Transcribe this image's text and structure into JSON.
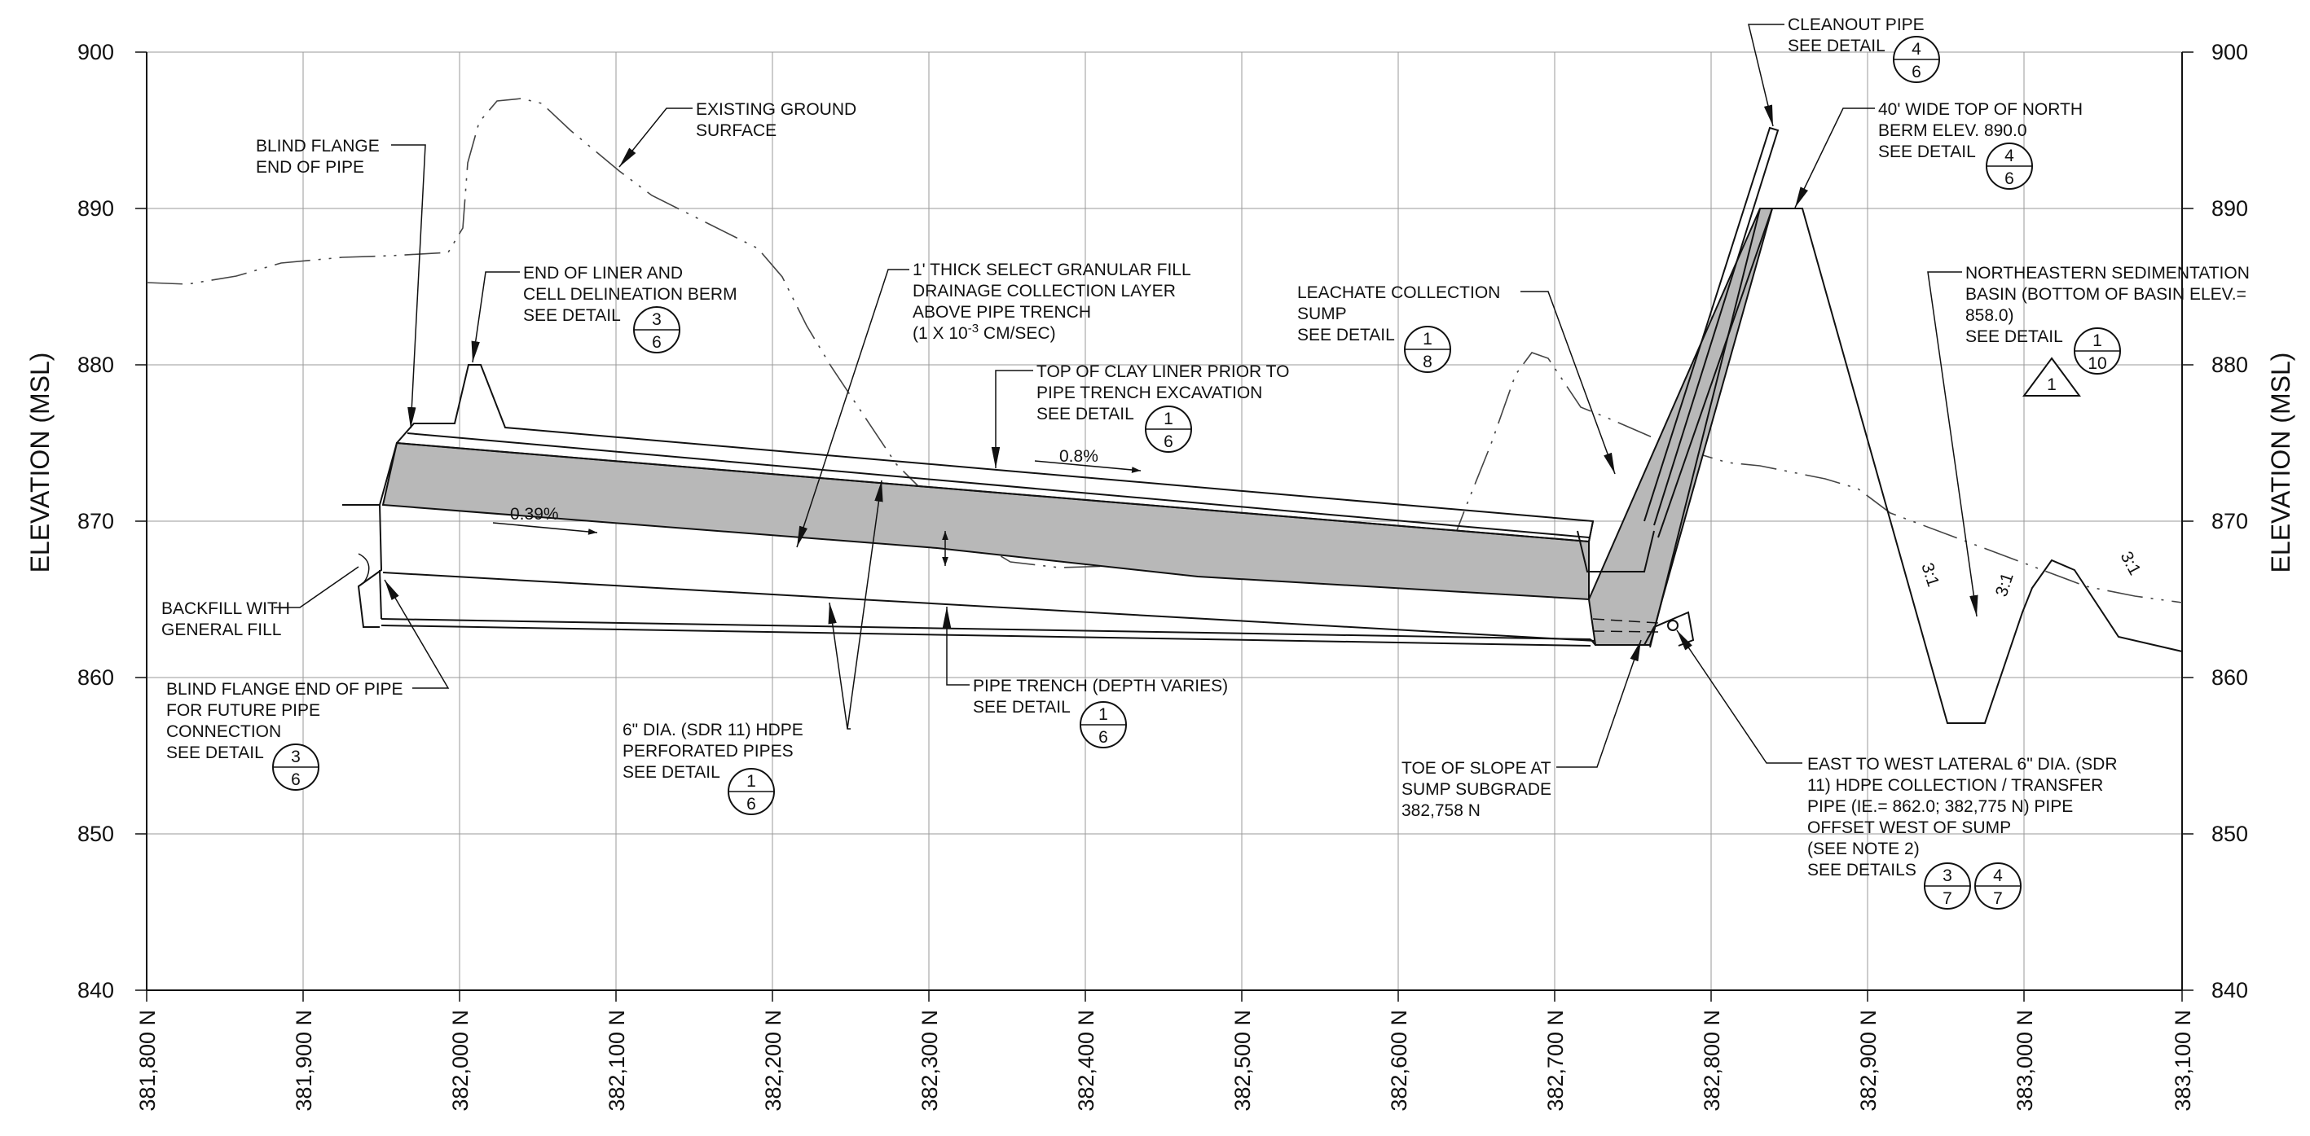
{
  "axes": {
    "y_title_left": "ELEVATION (MSL)",
    "y_title_right": "ELEVATION (MSL)",
    "y_ticks": [
      "840",
      "850",
      "860",
      "870",
      "880",
      "890",
      "900"
    ],
    "x_ticks": [
      "381,800 N",
      "381,900 N",
      "382,000 N",
      "382,100 N",
      "382,200 N",
      "382,300 N",
      "382,400 N",
      "382,500 N",
      "382,600 N",
      "382,700 N",
      "382,800 N",
      "382,900 N",
      "383,000 N",
      "383,100 N"
    ]
  },
  "slopes": {
    "pipe_slope": "0.39%",
    "liner_slope": "0.8%",
    "side_slope_a": "3:1",
    "side_slope_b": "3:1",
    "side_slope_c": "3:1"
  },
  "callouts": {
    "blind_flange_end": {
      "lines": [
        "BLIND FLANGE",
        "END OF PIPE"
      ]
    },
    "existing_ground": {
      "lines": [
        "EXISTING GROUND",
        "SURFACE"
      ]
    },
    "end_of_liner": {
      "lines": [
        "END OF LINER AND",
        "CELL DELINEATION BERM",
        "SEE DETAIL"
      ],
      "detail_top": "3",
      "detail_bottom": "6"
    },
    "granular_fill": {
      "lines": [
        "1' THICK SELECT GRANULAR FILL",
        "DRAINAGE COLLECTION LAYER",
        "ABOVE PIPE TRENCH"
      ],
      "perm_prefix": "(1 X 10",
      "perm_exp": "-3",
      "perm_suffix": " CM/SEC)"
    },
    "top_of_clay": {
      "lines": [
        "TOP OF CLAY LINER PRIOR TO",
        "PIPE TRENCH EXCAVATION",
        "SEE DETAIL"
      ],
      "detail_top": "1",
      "detail_bottom": "6"
    },
    "leachate_sump": {
      "lines": [
        "LEACHATE COLLECTION",
        "SUMP",
        "SEE DETAIL"
      ],
      "detail_top": "1",
      "detail_bottom": "8"
    },
    "cleanout": {
      "lines": [
        "CLEANOUT PIPE",
        "SEE DETAIL"
      ],
      "detail_top": "4",
      "detail_bottom": "6"
    },
    "north_berm": {
      "lines": [
        "40' WIDE TOP OF NORTH",
        "BERM ELEV. 890.0",
        "SEE DETAIL"
      ],
      "detail_top": "4",
      "detail_bottom": "6"
    },
    "sed_basin": {
      "lines": [
        "NORTHEASTERN SEDIMENTATION",
        "BASIN (BOTTOM OF BASIN ELEV.=",
        "858.0)",
        "SEE DETAIL"
      ],
      "detail_top": "1",
      "detail_bottom": "10",
      "revision": "1"
    },
    "backfill": {
      "lines": [
        "BACKFILL WITH",
        "GENERAL FILL"
      ]
    },
    "blind_flange_future": {
      "lines": [
        "BLIND FLANGE END OF PIPE",
        "FOR FUTURE PIPE",
        "CONNECTION",
        "SEE DETAIL"
      ],
      "detail_top": "3",
      "detail_bottom": "6"
    },
    "perf_pipes": {
      "lines": [
        "6\" DIA. (SDR 11) HDPE",
        "PERFORATED PIPES",
        "SEE DETAIL"
      ],
      "detail_top": "1",
      "detail_bottom": "6"
    },
    "pipe_trench": {
      "lines": [
        "PIPE TRENCH (DEPTH VARIES)",
        "SEE DETAIL"
      ],
      "detail_top": "1",
      "detail_bottom": "6"
    },
    "toe_of_slope": {
      "lines": [
        "TOE OF SLOPE AT",
        "SUMP SUBGRADE",
        "382,758 N"
      ]
    },
    "lateral_pipe": {
      "lines": [
        "EAST TO WEST LATERAL 6\" DIA. (SDR",
        "11) HDPE COLLECTION / TRANSFER",
        "PIPE (IE.= 862.0; 382,775 N) PIPE",
        "OFFSET WEST OF SUMP",
        "(SEE NOTE 2)",
        "SEE DETAILS"
      ],
      "detail_a_top": "3",
      "detail_a_bottom": "7",
      "detail_b_top": "4",
      "detail_b_bottom": "7"
    }
  }
}
